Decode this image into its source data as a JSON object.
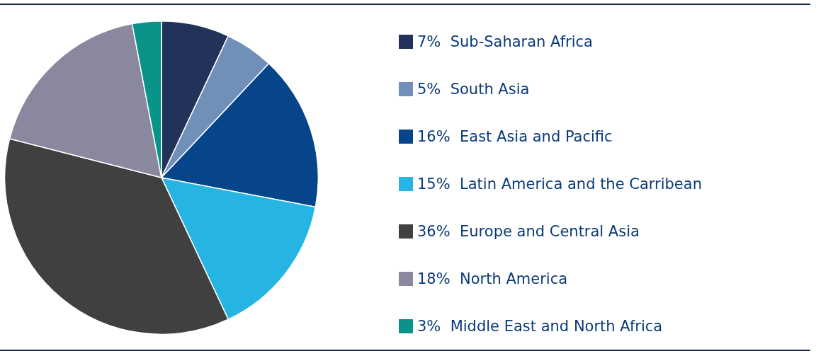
{
  "chart_data": {
    "type": "pie",
    "categories": [
      "Sub-Saharan Africa",
      "South Asia",
      "East Asia and Pacific",
      "Latin America and the Carribean",
      "Europe and Central Asia",
      "North America",
      "Middle East and North Africa"
    ],
    "values": [
      7,
      5,
      16,
      15,
      36,
      18,
      3
    ],
    "colors": [
      "#22325a",
      "#7090b8",
      "#064589",
      "#26b5e3",
      "#404040",
      "#8a889f",
      "#0a9489"
    ],
    "value_labels": [
      "7%",
      "5%",
      "16%",
      "15%",
      "36%",
      "18%",
      "3%"
    ],
    "legend": "right"
  }
}
